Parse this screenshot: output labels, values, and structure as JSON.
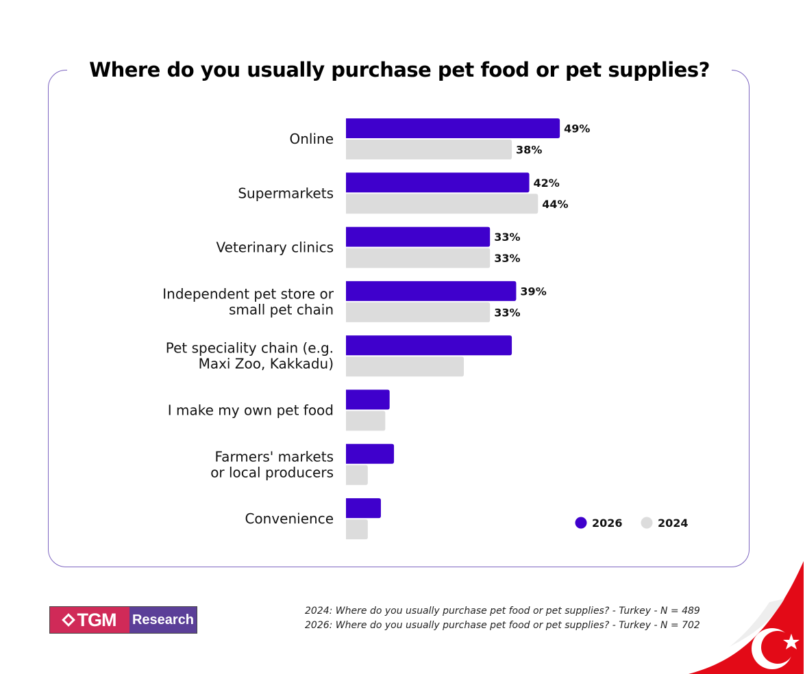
{
  "title": "Where do you usually purchase pet food or pet supplies?",
  "chart_data": {
    "type": "bar",
    "orientation": "horizontal",
    "categories": [
      "Online",
      "Supermarkets",
      "Veterinary clinics",
      "Independent pet store or small pet chain",
      "Pet speciality chain (e.g. Maxi Zoo, Kakkadu)",
      "I make my own pet food",
      "Farmers' markets or local producers",
      "Convenience"
    ],
    "category_lines": [
      [
        "Online"
      ],
      [
        "Supermarkets"
      ],
      [
        "Veterinary clinics"
      ],
      [
        "Independent pet store or",
        "small pet chain"
      ],
      [
        "Pet speciality chain (e.g.",
        "Maxi Zoo, Kakkadu)"
      ],
      [
        "I make my own pet food"
      ],
      [
        "Farmers' markets",
        "or local producers"
      ],
      [
        "Convenience"
      ]
    ],
    "series": [
      {
        "name": "2026",
        "color": "#3f00cc",
        "values": [
          49,
          42,
          33,
          39,
          38,
          10,
          11,
          8
        ],
        "labels": [
          "49%",
          "42%",
          "33%",
          "39%",
          "",
          "",
          "",
          ""
        ]
      },
      {
        "name": "2024",
        "color": "#dcdcdc",
        "values": [
          38,
          44,
          33,
          33,
          27,
          9,
          5,
          5
        ],
        "labels": [
          "38%",
          "44%",
          "33%",
          "33%",
          "",
          "",
          "",
          ""
        ]
      }
    ],
    "xlim": [
      0,
      100
    ],
    "legend": "bottom-right"
  },
  "footnotes": [
    "2024: Where do you usually purchase pet food or pet supplies? - Turkey - N = 489",
    "2026: Where do you usually purchase pet food or pet supplies? - Turkey - N = 702"
  ],
  "logo": {
    "left": "TGM",
    "right": "Research"
  }
}
